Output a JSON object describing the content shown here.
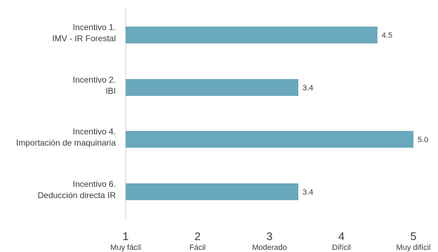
{
  "chart_data": {
    "type": "bar",
    "orientation": "horizontal",
    "categories": [
      [
        "Incentivo 1.",
        "IMV - IR Forestal"
      ],
      [
        "Incentivo 2.",
        "IBI"
      ],
      [
        "Incentivo 4.",
        "Importación de maquinaria"
      ],
      [
        "Incentivo 6.",
        "Deducción directa IR"
      ]
    ],
    "values": [
      4.5,
      3.4,
      5.0,
      3.4
    ],
    "value_labels": [
      "4.5",
      "3.4",
      "5.0",
      "3.4"
    ],
    "xlim": [
      1,
      5
    ],
    "x_ticks": [
      {
        "value": 1,
        "number": "1",
        "label": "Muy fácil"
      },
      {
        "value": 2,
        "number": "2",
        "label": "Fácil"
      },
      {
        "value": 3,
        "number": "3",
        "label": "Moderado"
      },
      {
        "value": 4,
        "number": "4",
        "label": "Difícil"
      },
      {
        "value": 5,
        "number": "5",
        "label": "Muy difícil"
      }
    ],
    "bar_color": "#6aa8bd",
    "axis_color": "#cfcfcf",
    "grid": false
  }
}
